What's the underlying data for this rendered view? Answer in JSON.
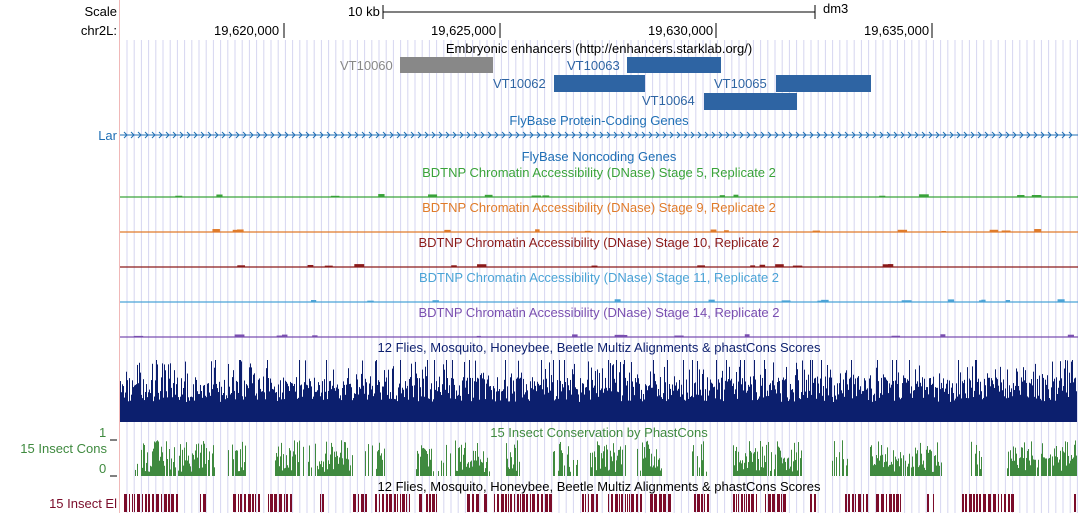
{
  "header": {
    "scale_label": "Scale",
    "chrom_label": "chr2L:",
    "scale_bar_label": "10 kb",
    "assembly": "dm3"
  },
  "ruler": {
    "ticks": [
      "19,620,000",
      "19,625,000",
      "19,630,000",
      "19,635,000"
    ]
  },
  "tracks": {
    "enhancers": {
      "title": "Embryonic enhancers (http://enhancers.starklab.org/)",
      "features": [
        {
          "name": "VT10060",
          "color": "#888888"
        },
        {
          "name": "VT10063",
          "color": "#2e64a3"
        },
        {
          "name": "VT10062",
          "color": "#2e64a3"
        },
        {
          "name": "VT10065",
          "color": "#2e64a3"
        },
        {
          "name": "VT10064",
          "color": "#2e64a3"
        }
      ]
    },
    "flybase_coding": {
      "title": "FlyBase Protein-Coding Genes",
      "gene_label": "Lar",
      "color": "#1f6fb5"
    },
    "flybase_noncoding": {
      "title": "FlyBase Noncoding Genes",
      "color": "#1f6fb5"
    },
    "dnase": [
      {
        "title": "BDTNP Chromatin Accessibility (DNase) Stage 5, Replicate 2",
        "color": "#3aa33a"
      },
      {
        "title": "BDTNP Chromatin Accessibility (DNase) Stage 9, Replicate 2",
        "color": "#e07b2a"
      },
      {
        "title": "BDTNP Chromatin Accessibility (DNase) Stage 10, Replicate 2",
        "color": "#8b1a1a"
      },
      {
        "title": "BDTNP Chromatin Accessibility (DNase) Stage 11, Replicate 2",
        "color": "#4aa3d6"
      },
      {
        "title": "BDTNP Chromatin Accessibility (DNase) Stage 14, Replicate 2",
        "color": "#7a4fb0"
      }
    ],
    "multiz": {
      "title": "12 Flies, Mosquito, Honeybee, Beetle Multiz Alignments & phastCons Scores",
      "color": "#0c1f6e"
    },
    "phastcons": {
      "title": "15 Insect Conservation by PhastCons",
      "side_label": "15 Insect Cons",
      "axis_max": "1",
      "axis_min": "0",
      "color": "#3f8a3f"
    },
    "elements": {
      "title": "12 Flies, Mosquito, Honeybee, Beetle Multiz Alignments & phastCons Scores",
      "side_label": "15 Insect El",
      "color": "#7b0c2a"
    }
  }
}
